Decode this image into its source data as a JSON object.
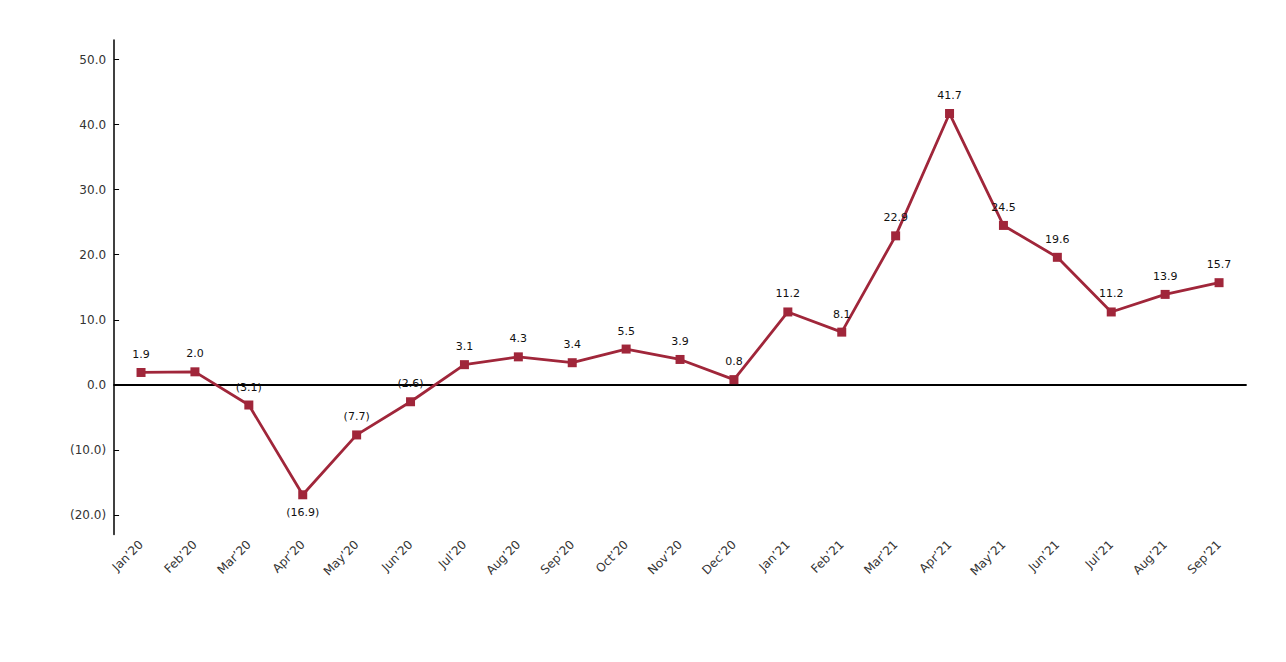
{
  "chart_data": {
    "type": "line",
    "categories": [
      "Jan’20",
      "Feb’20",
      "Mar’20",
      "Apr’20",
      "May’20",
      "Jun’20",
      "Jul’20",
      "Aug’20",
      "Sep’20",
      "Oct’20",
      "Nov’20",
      "Dec’20",
      "Jan’21",
      "Feb’21",
      "Mar’21",
      "Apr’21",
      "May’21",
      "Jun’21",
      "Jul’21",
      "Aug’21",
      "Sep’21"
    ],
    "values": [
      1.9,
      2.0,
      -3.1,
      -16.9,
      -7.7,
      -2.6,
      3.1,
      4.3,
      3.4,
      5.5,
      3.9,
      0.8,
      11.2,
      8.1,
      22.9,
      41.7,
      24.5,
      19.6,
      11.2,
      13.9,
      15.7
    ],
    "value_labels": [
      "1.9",
      "2.0",
      "(3.1)",
      "(16.9)",
      "(7.7)",
      "(2.6)",
      "3.1",
      "4.3",
      "3.4",
      "5.5",
      "3.9",
      "0.8",
      "11.2",
      "8.1",
      "22.9",
      "41.7",
      "24.5",
      "19.6",
      "11.2",
      "13.9",
      "15.7"
    ],
    "color": "#A0263A",
    "marker": "square",
    "data_labels": true,
    "grid": false,
    "ylim": [
      -23,
      53
    ],
    "yticks": [
      {
        "value": -20,
        "label": "(20.0)"
      },
      {
        "value": -10,
        "label": "(10.0)"
      },
      {
        "value": 0,
        "label": "0.0"
      },
      {
        "value": 10,
        "label": "10.0"
      },
      {
        "value": 20,
        "label": "20.0"
      },
      {
        "value": 30,
        "label": "30.0"
      },
      {
        "value": 40,
        "label": "40.0"
      },
      {
        "value": 50,
        "label": "50.0"
      }
    ]
  }
}
